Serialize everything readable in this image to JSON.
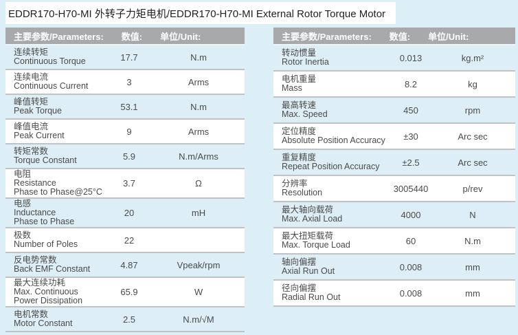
{
  "page": {
    "title": "EDDR170-H70-MI 外转子力矩电机/EDDR170-H70-MI External Rotor Torque Motor"
  },
  "colors": {
    "page_bg": "#dceef6",
    "row_alt_bg": "#ddeef6",
    "row_bg": "#ffffff",
    "header_bg": "#a8a9ab",
    "header_text": "#ffffff",
    "divider": "#bfc3c6",
    "body_text": "#4a4a4a",
    "title_text": "#1f1f1f"
  },
  "tables": [
    {
      "header": {
        "params": "主要参数/Parameters:",
        "value": "数值:",
        "unit": "单位/Unit:"
      },
      "rows": [
        {
          "name_lines": [
            "连续转矩",
            "Continuous Torque"
          ],
          "value": "17.7",
          "unit": "N.m"
        },
        {
          "name_lines": [
            "连续电流",
            "Continuous Current"
          ],
          "value": "3",
          "unit": "Arms"
        },
        {
          "name_lines": [
            "峰值转矩",
            "Peak Torque"
          ],
          "value": "53.1",
          "unit": "N.m"
        },
        {
          "name_lines": [
            "峰值电流",
            "Peak Current"
          ],
          "value": "9",
          "unit": "Arms"
        },
        {
          "name_lines": [
            "转矩常数",
            "Torque Constant"
          ],
          "value": "5.9",
          "unit": "N.m/Arms"
        },
        {
          "name_lines": [
            "电阻",
            "Resistance",
            "Phase to Phase@25°C"
          ],
          "value": "3.7",
          "unit": "Ω"
        },
        {
          "name_lines": [
            "电感",
            "Inductance",
            "Phase to Phase"
          ],
          "value": "20",
          "unit": "mH"
        },
        {
          "name_lines": [
            "极数",
            "Number of Poles"
          ],
          "value": "22",
          "unit": ""
        },
        {
          "name_lines": [
            "反电势常数",
            "Back EMF Constant"
          ],
          "value": "4.87",
          "unit": "Vpeak/rpm"
        },
        {
          "name_lines": [
            "最大连续功耗",
            "Max. Continuous",
            "Power Dissipation"
          ],
          "value": "65.9",
          "unit": "W"
        },
        {
          "name_lines": [
            "电机常数",
            "Motor Constant"
          ],
          "value": "2.5",
          "unit": "N.m/√M"
        }
      ]
    },
    {
      "header": {
        "params": "主要参数/Parameters:",
        "value": "数值:",
        "unit": "单位/Unit:"
      },
      "rows": [
        {
          "name_lines": [
            "转动惯量",
            "Rotor Inertia"
          ],
          "value": "0.013",
          "unit": "kg.m²"
        },
        {
          "name_lines": [
            "电机重量",
            "Mass"
          ],
          "value": "8.2",
          "unit": "kg"
        },
        {
          "name_lines": [
            "最高转速",
            "Max. Speed"
          ],
          "value": "450",
          "unit": "rpm"
        },
        {
          "name_lines": [
            "定位精度",
            "Absolute Position Accuracy"
          ],
          "value": "±30",
          "unit": "Arc sec"
        },
        {
          "name_lines": [
            "重复精度",
            "Repeat Position Accuracy"
          ],
          "value": "±2.5",
          "unit": "Arc sec"
        },
        {
          "name_lines": [
            "分辨率",
            "Resolution"
          ],
          "value": "3005440",
          "unit": "p/rev"
        },
        {
          "name_lines": [
            "最大轴向载荷",
            "Max. Axial Load"
          ],
          "value": "4000",
          "unit": "N"
        },
        {
          "name_lines": [
            "最大扭矩载荷",
            "Max. Torque Load"
          ],
          "value": "60",
          "unit": "N.m"
        },
        {
          "name_lines": [
            "轴向偏摆",
            "Axial Run Out"
          ],
          "value": "0.008",
          "unit": "mm"
        },
        {
          "name_lines": [
            "径向偏摆",
            "Radial Run Out"
          ],
          "value": "0.008",
          "unit": "mm"
        }
      ]
    }
  ]
}
